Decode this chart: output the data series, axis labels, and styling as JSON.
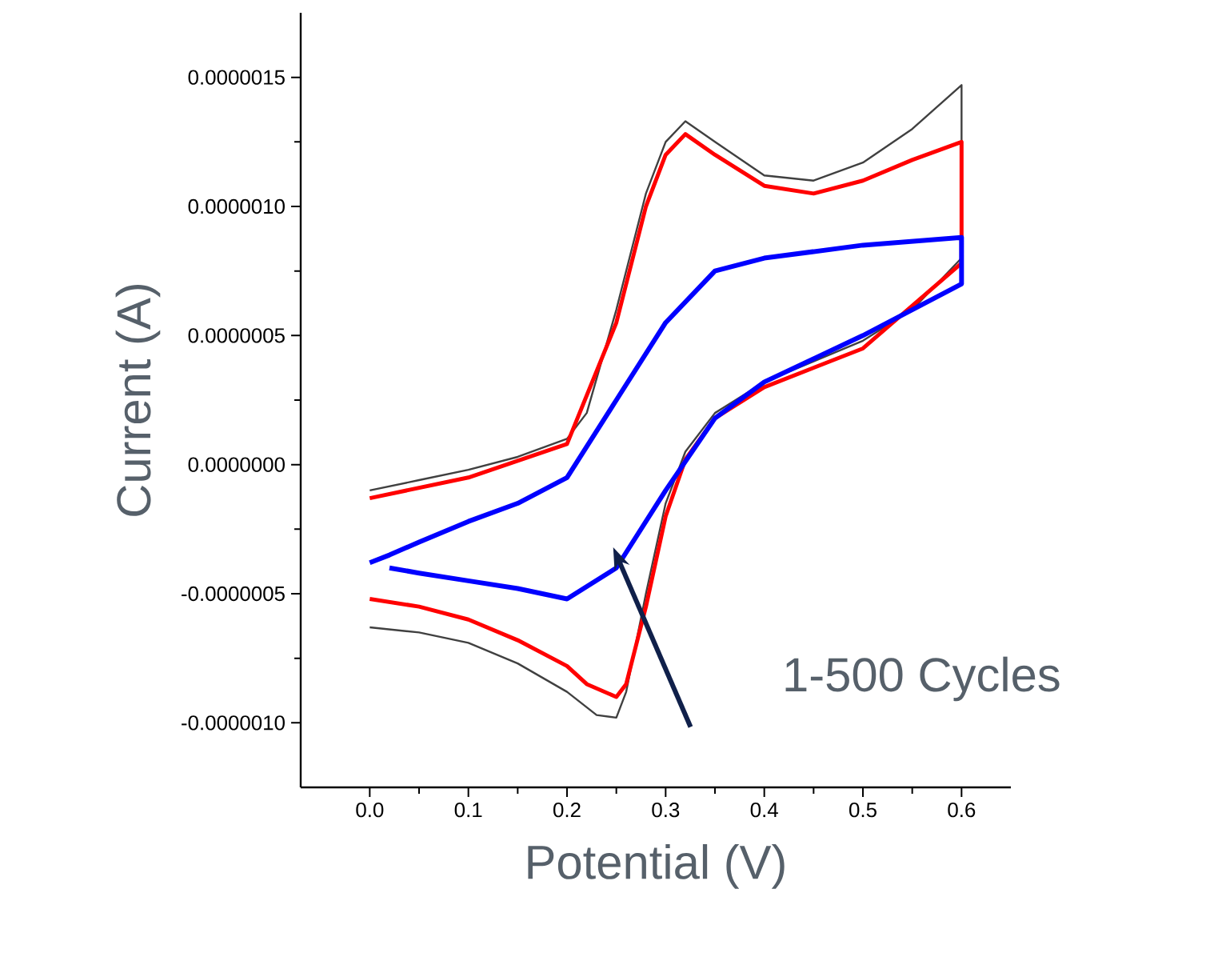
{
  "chart_data": {
    "type": "line",
    "xlabel": "Potential (V)",
    "ylabel": "Current (A)",
    "xlim": [
      -0.07,
      0.65
    ],
    "ylim": [
      -1.25e-06,
      1.75e-06
    ],
    "xticks": [
      {
        "value": 0,
        "label": "0.0"
      },
      {
        "value": 0.1,
        "label": "0.1"
      },
      {
        "value": 0.2,
        "label": "0.2"
      },
      {
        "value": 0.3,
        "label": "0.3"
      },
      {
        "value": 0.4,
        "label": "0.4"
      },
      {
        "value": 0.5,
        "label": "0.5"
      },
      {
        "value": 0.6,
        "label": "0.6"
      }
    ],
    "yticks": [
      {
        "value": -1e-06,
        "label": "-0.0000010"
      },
      {
        "value": -5e-07,
        "label": "-0.0000005"
      },
      {
        "value": 0,
        "label": "0.0000000"
      },
      {
        "value": 5e-07,
        "label": "0.0000005"
      },
      {
        "value": 1e-06,
        "label": "0.0000010"
      },
      {
        "value": 1.5e-06,
        "label": "0.0000015"
      }
    ],
    "grid": false,
    "marker": "none",
    "line_style": "solid",
    "annotations": [
      "1-500 Cycles"
    ],
    "series": [
      {
        "color": "#404040",
        "x": [
          0,
          0.05,
          0.1,
          0.15,
          0.2,
          0.22,
          0.25,
          0.28,
          0.3,
          0.32,
          0.35,
          0.4,
          0.45,
          0.5,
          0.55,
          0.6,
          0.6,
          0.55,
          0.5,
          0.45,
          0.4,
          0.35,
          0.32,
          0.3,
          0.28,
          0.26,
          0.25,
          0.23,
          0.2,
          0.15,
          0.1,
          0.05,
          0
        ],
        "values": [
          -1e-07,
          -6e-08,
          -2e-08,
          3e-08,
          1e-07,
          2e-07,
          6e-07,
          1.05e-06,
          1.25e-06,
          1.33e-06,
          1.25e-06,
          1.12e-06,
          1.1e-06,
          1.17e-06,
          1.3e-06,
          1.47e-06,
          8e-07,
          6e-07,
          4.8e-07,
          4e-07,
          3.2e-07,
          2e-07,
          5e-08,
          -1.5e-07,
          -5e-07,
          -8.8e-07,
          -9.8e-07,
          -9.7e-07,
          -8.8e-07,
          -7.7e-07,
          -6.9e-07,
          -6.5e-07,
          -6.3e-07
        ]
      },
      {
        "color": "#ff0000",
        "x": [
          0,
          0.1,
          0.2,
          0.25,
          0.28,
          0.3,
          0.32,
          0.35,
          0.4,
          0.45,
          0.5,
          0.55,
          0.6,
          0.6,
          0.5,
          0.4,
          0.35,
          0.32,
          0.3,
          0.28,
          0.26,
          0.25,
          0.22,
          0.2,
          0.15,
          0.1,
          0.05,
          0
        ],
        "values": [
          -1.3e-07,
          -5e-08,
          8e-08,
          5.5e-07,
          1e-06,
          1.2e-06,
          1.28e-06,
          1.2e-06,
          1.08e-06,
          1.05e-06,
          1.1e-06,
          1.18e-06,
          1.25e-06,
          7.8e-07,
          4.5e-07,
          3e-07,
          1.8e-07,
          2e-08,
          -2e-07,
          -5.5e-07,
          -8.5e-07,
          -9e-07,
          -8.5e-07,
          -7.8e-07,
          -6.8e-07,
          -6e-07,
          -5.5e-07,
          -5.2e-07
        ]
      },
      {
        "color": "#0000ff",
        "x": [
          0,
          0.02,
          0.05,
          0.1,
          0.15,
          0.2,
          0.25,
          0.3,
          0.35,
          0.4,
          0.5,
          0.6,
          0.6,
          0.5,
          0.4,
          0.35,
          0.3,
          0.25,
          0.2,
          0.15,
          0.1,
          0.05,
          0.02
        ],
        "values": [
          -3.8e-07,
          -3.5e-07,
          -3e-07,
          -2.2e-07,
          -1.5e-07,
          -5e-08,
          2.5e-07,
          5.5e-07,
          7.5e-07,
          8e-07,
          8.5e-07,
          8.8e-07,
          7e-07,
          5e-07,
          3.2e-07,
          1.8e-07,
          -1e-07,
          -4e-07,
          -5.2e-07,
          -4.8e-07,
          -4.5e-07,
          -4.2e-07,
          -4e-07
        ]
      }
    ]
  }
}
